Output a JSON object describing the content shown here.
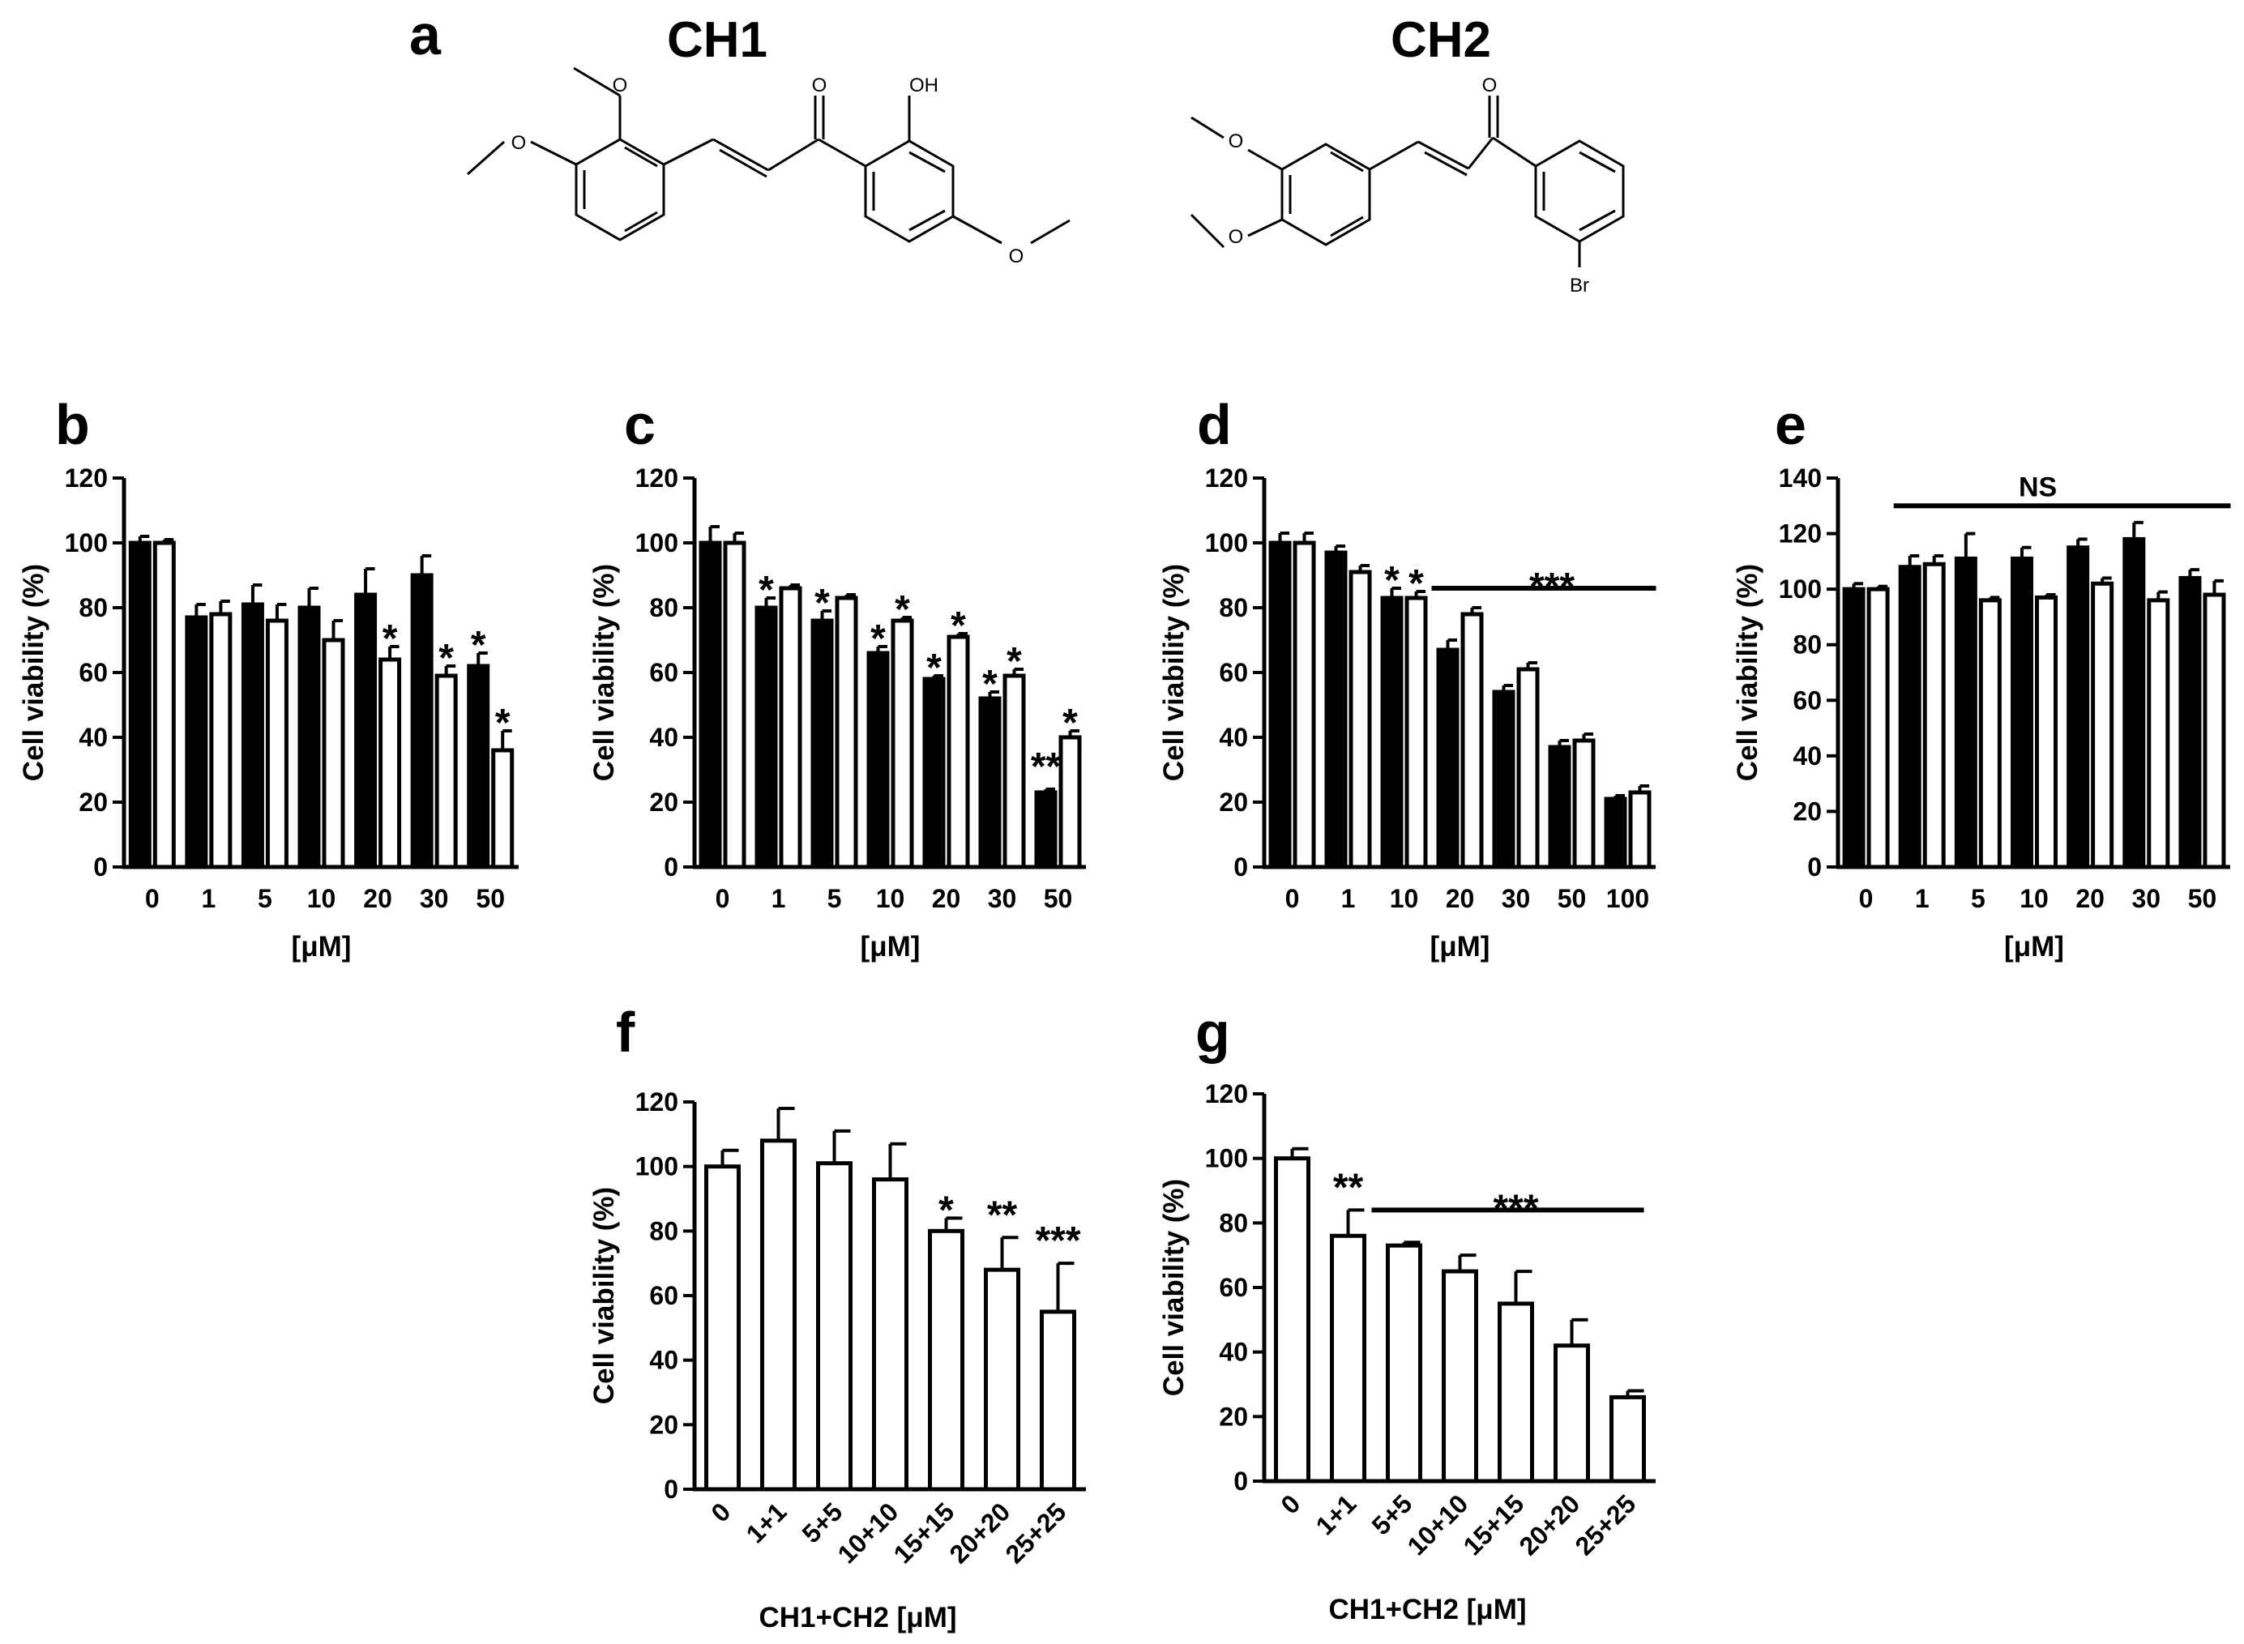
{
  "panel_a": {
    "label": "a",
    "compound1": {
      "name": "CH1",
      "atoms": [
        "O",
        "O",
        "O",
        "OH",
        "O"
      ]
    },
    "compound2": {
      "name": "CH2",
      "atoms": [
        "O",
        "O",
        "O",
        "Br"
      ]
    }
  },
  "chart_data": [
    {
      "panel": "b",
      "type": "bar",
      "ylabel": "Cell viability (%)",
      "xlabel": "[μM]",
      "ylim": [
        0,
        120
      ],
      "yticks": [
        0,
        20,
        40,
        60,
        80,
        100,
        120
      ],
      "categories": [
        "0",
        "1",
        "5",
        "10",
        "20",
        "30",
        "50"
      ],
      "series": [
        {
          "fill": "#000000",
          "values": [
            100,
            77,
            81,
            80,
            84,
            90,
            62
          ],
          "errors": [
            2,
            4,
            6,
            6,
            8,
            6,
            4
          ]
        },
        {
          "fill": "#ffffff",
          "values": [
            100,
            78,
            76,
            70,
            64,
            59,
            36
          ],
          "errors": [
            1,
            4,
            5,
            6,
            4,
            3,
            6
          ]
        }
      ],
      "annotations": [
        {
          "text": "*",
          "series": 1,
          "index": 4
        },
        {
          "text": "*",
          "series": 1,
          "index": 5
        },
        {
          "text": "*",
          "series": 0,
          "index": 6
        },
        {
          "text": "*",
          "series": 1,
          "index": 6
        }
      ]
    },
    {
      "panel": "c",
      "type": "bar",
      "ylabel": "Cell viability (%)",
      "xlabel": "[μM]",
      "ylim": [
        0,
        120
      ],
      "yticks": [
        0,
        20,
        40,
        60,
        80,
        100,
        120
      ],
      "categories": [
        "0",
        "1",
        "5",
        "10",
        "20",
        "30",
        "50"
      ],
      "series": [
        {
          "fill": "#000000",
          "values": [
            100,
            80,
            76,
            66,
            58,
            52,
            23
          ],
          "errors": [
            5,
            3,
            3,
            2,
            1,
            2,
            1
          ]
        },
        {
          "fill": "#ffffff",
          "values": [
            100,
            86,
            83,
            76,
            71,
            59,
            40
          ],
          "errors": [
            3,
            1,
            1,
            1,
            1,
            2,
            2
          ]
        }
      ],
      "annotations": [
        {
          "text": "*",
          "series": 0,
          "index": 1
        },
        {
          "text": "*",
          "series": 0,
          "index": 2
        },
        {
          "text": "*",
          "series": 0,
          "index": 3
        },
        {
          "text": "*",
          "series": 1,
          "index": 3
        },
        {
          "text": "*",
          "series": 0,
          "index": 4
        },
        {
          "text": "*",
          "series": 1,
          "index": 4
        },
        {
          "text": "*",
          "series": 0,
          "index": 5
        },
        {
          "text": "*",
          "series": 1,
          "index": 5
        },
        {
          "text": "**",
          "series": 0,
          "index": 6
        },
        {
          "text": "*",
          "series": 1,
          "index": 6
        }
      ]
    },
    {
      "panel": "d",
      "type": "bar",
      "ylabel": "Cell viability (%)",
      "xlabel": "[μM]",
      "ylim": [
        0,
        120
      ],
      "yticks": [
        0,
        20,
        40,
        60,
        80,
        100,
        120
      ],
      "categories": [
        "0",
        "1",
        "10",
        "20",
        "30",
        "50",
        "100"
      ],
      "series": [
        {
          "fill": "#000000",
          "values": [
            100,
            97,
            83,
            67,
            54,
            37,
            21
          ],
          "errors": [
            3,
            2,
            3,
            3,
            2,
            2,
            1
          ]
        },
        {
          "fill": "#ffffff",
          "values": [
            100,
            91,
            83,
            78,
            61,
            39,
            23
          ],
          "errors": [
            3,
            2,
            2,
            2,
            2,
            2,
            2
          ]
        }
      ],
      "annotations": [
        {
          "text": "*",
          "series": 0,
          "index": 2
        },
        {
          "text": "*",
          "series": 1,
          "index": 2
        }
      ],
      "span": {
        "text": "***",
        "from": 3,
        "to": 6,
        "y": 86
      }
    },
    {
      "panel": "e",
      "type": "bar",
      "ylabel": "Cell viability (%)",
      "xlabel": "[μM]",
      "ylim": [
        0,
        140
      ],
      "yticks": [
        0,
        20,
        40,
        60,
        80,
        100,
        120,
        140
      ],
      "categories": [
        "0",
        "1",
        "5",
        "10",
        "20",
        "30",
        "50"
      ],
      "series": [
        {
          "fill": "#000000",
          "values": [
            100,
            108,
            111,
            111,
            115,
            118,
            104
          ],
          "errors": [
            2,
            4,
            9,
            4,
            3,
            6,
            3
          ]
        },
        {
          "fill": "#ffffff",
          "values": [
            100,
            109,
            96,
            97,
            102,
            96,
            98
          ],
          "errors": [
            1,
            3,
            1,
            1,
            2,
            3,
            5
          ]
        }
      ],
      "annotations": [],
      "span": {
        "text": "NS",
        "from": 1,
        "to": 6,
        "y": 130
      }
    },
    {
      "panel": "f",
      "type": "bar",
      "ylabel": "Cell viability (%)",
      "xlabel": "CH1+CH2 [μM]",
      "ylim": [
        0,
        120
      ],
      "yticks": [
        0,
        20,
        40,
        60,
        80,
        100,
        120
      ],
      "categories": [
        "0",
        "1+1",
        "5+5",
        "10+10",
        "15+15",
        "20+20",
        "25+25"
      ],
      "series": [
        {
          "fill": "#ffffff",
          "values": [
            100,
            108,
            101,
            96,
            80,
            68,
            55
          ],
          "errors": [
            5,
            10,
            10,
            11,
            4,
            10,
            15
          ]
        }
      ],
      "annotations": [
        {
          "text": "*",
          "series": 0,
          "index": 4
        },
        {
          "text": "**",
          "series": 0,
          "index": 5
        },
        {
          "text": "***",
          "series": 0,
          "index": 6
        }
      ]
    },
    {
      "panel": "g",
      "type": "bar",
      "ylabel": "Cell viability (%)",
      "xlabel": "CH1+CH2 [μM]",
      "ylim": [
        0,
        120
      ],
      "yticks": [
        0,
        20,
        40,
        60,
        80,
        100,
        120
      ],
      "categories": [
        "0",
        "1+1",
        "5+5",
        "10+10",
        "15+15",
        "20+20",
        "25+25"
      ],
      "series": [
        {
          "fill": "#ffffff",
          "values": [
            100,
            76,
            73,
            65,
            55,
            42,
            26
          ],
          "errors": [
            3,
            8,
            1,
            5,
            10,
            8,
            2
          ]
        }
      ],
      "annotations": [
        {
          "text": "**",
          "series": 0,
          "index": 1
        }
      ],
      "span": {
        "text": "***",
        "from": 2,
        "to": 6,
        "y": 84
      }
    }
  ]
}
